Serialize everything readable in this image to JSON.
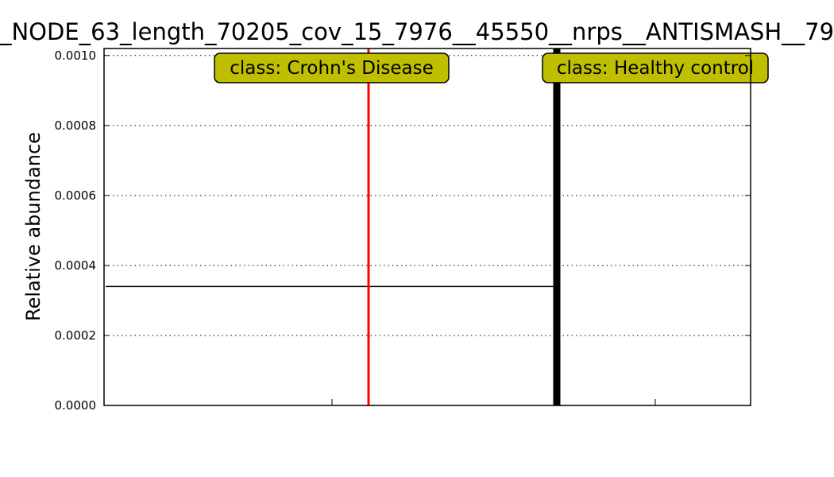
{
  "chart_data": {
    "type": "line",
    "title": "_NODE_63_length_70205_cov_15_7976__45550__nrps__ANTISMASH__79",
    "xlabel": "",
    "ylabel": "Relative abundance",
    "ylim": [
      0,
      0.00102
    ],
    "y_ticks": [
      "0.0000",
      "0.0002",
      "0.0004",
      "0.0006",
      "0.0008",
      "0.0010"
    ],
    "grid": "horizontal-dotted",
    "classes": [
      {
        "label": "class: Crohn's Disease",
        "mean": 0.00034,
        "mean_line_color": "#ff0000",
        "values": [
          0.00034
        ]
      },
      {
        "label": "class: Healthy control",
        "mean": 0,
        "mean_line_color": "#000000",
        "values": [
          0
        ]
      }
    ],
    "label_box_color": "#bfbf00"
  }
}
